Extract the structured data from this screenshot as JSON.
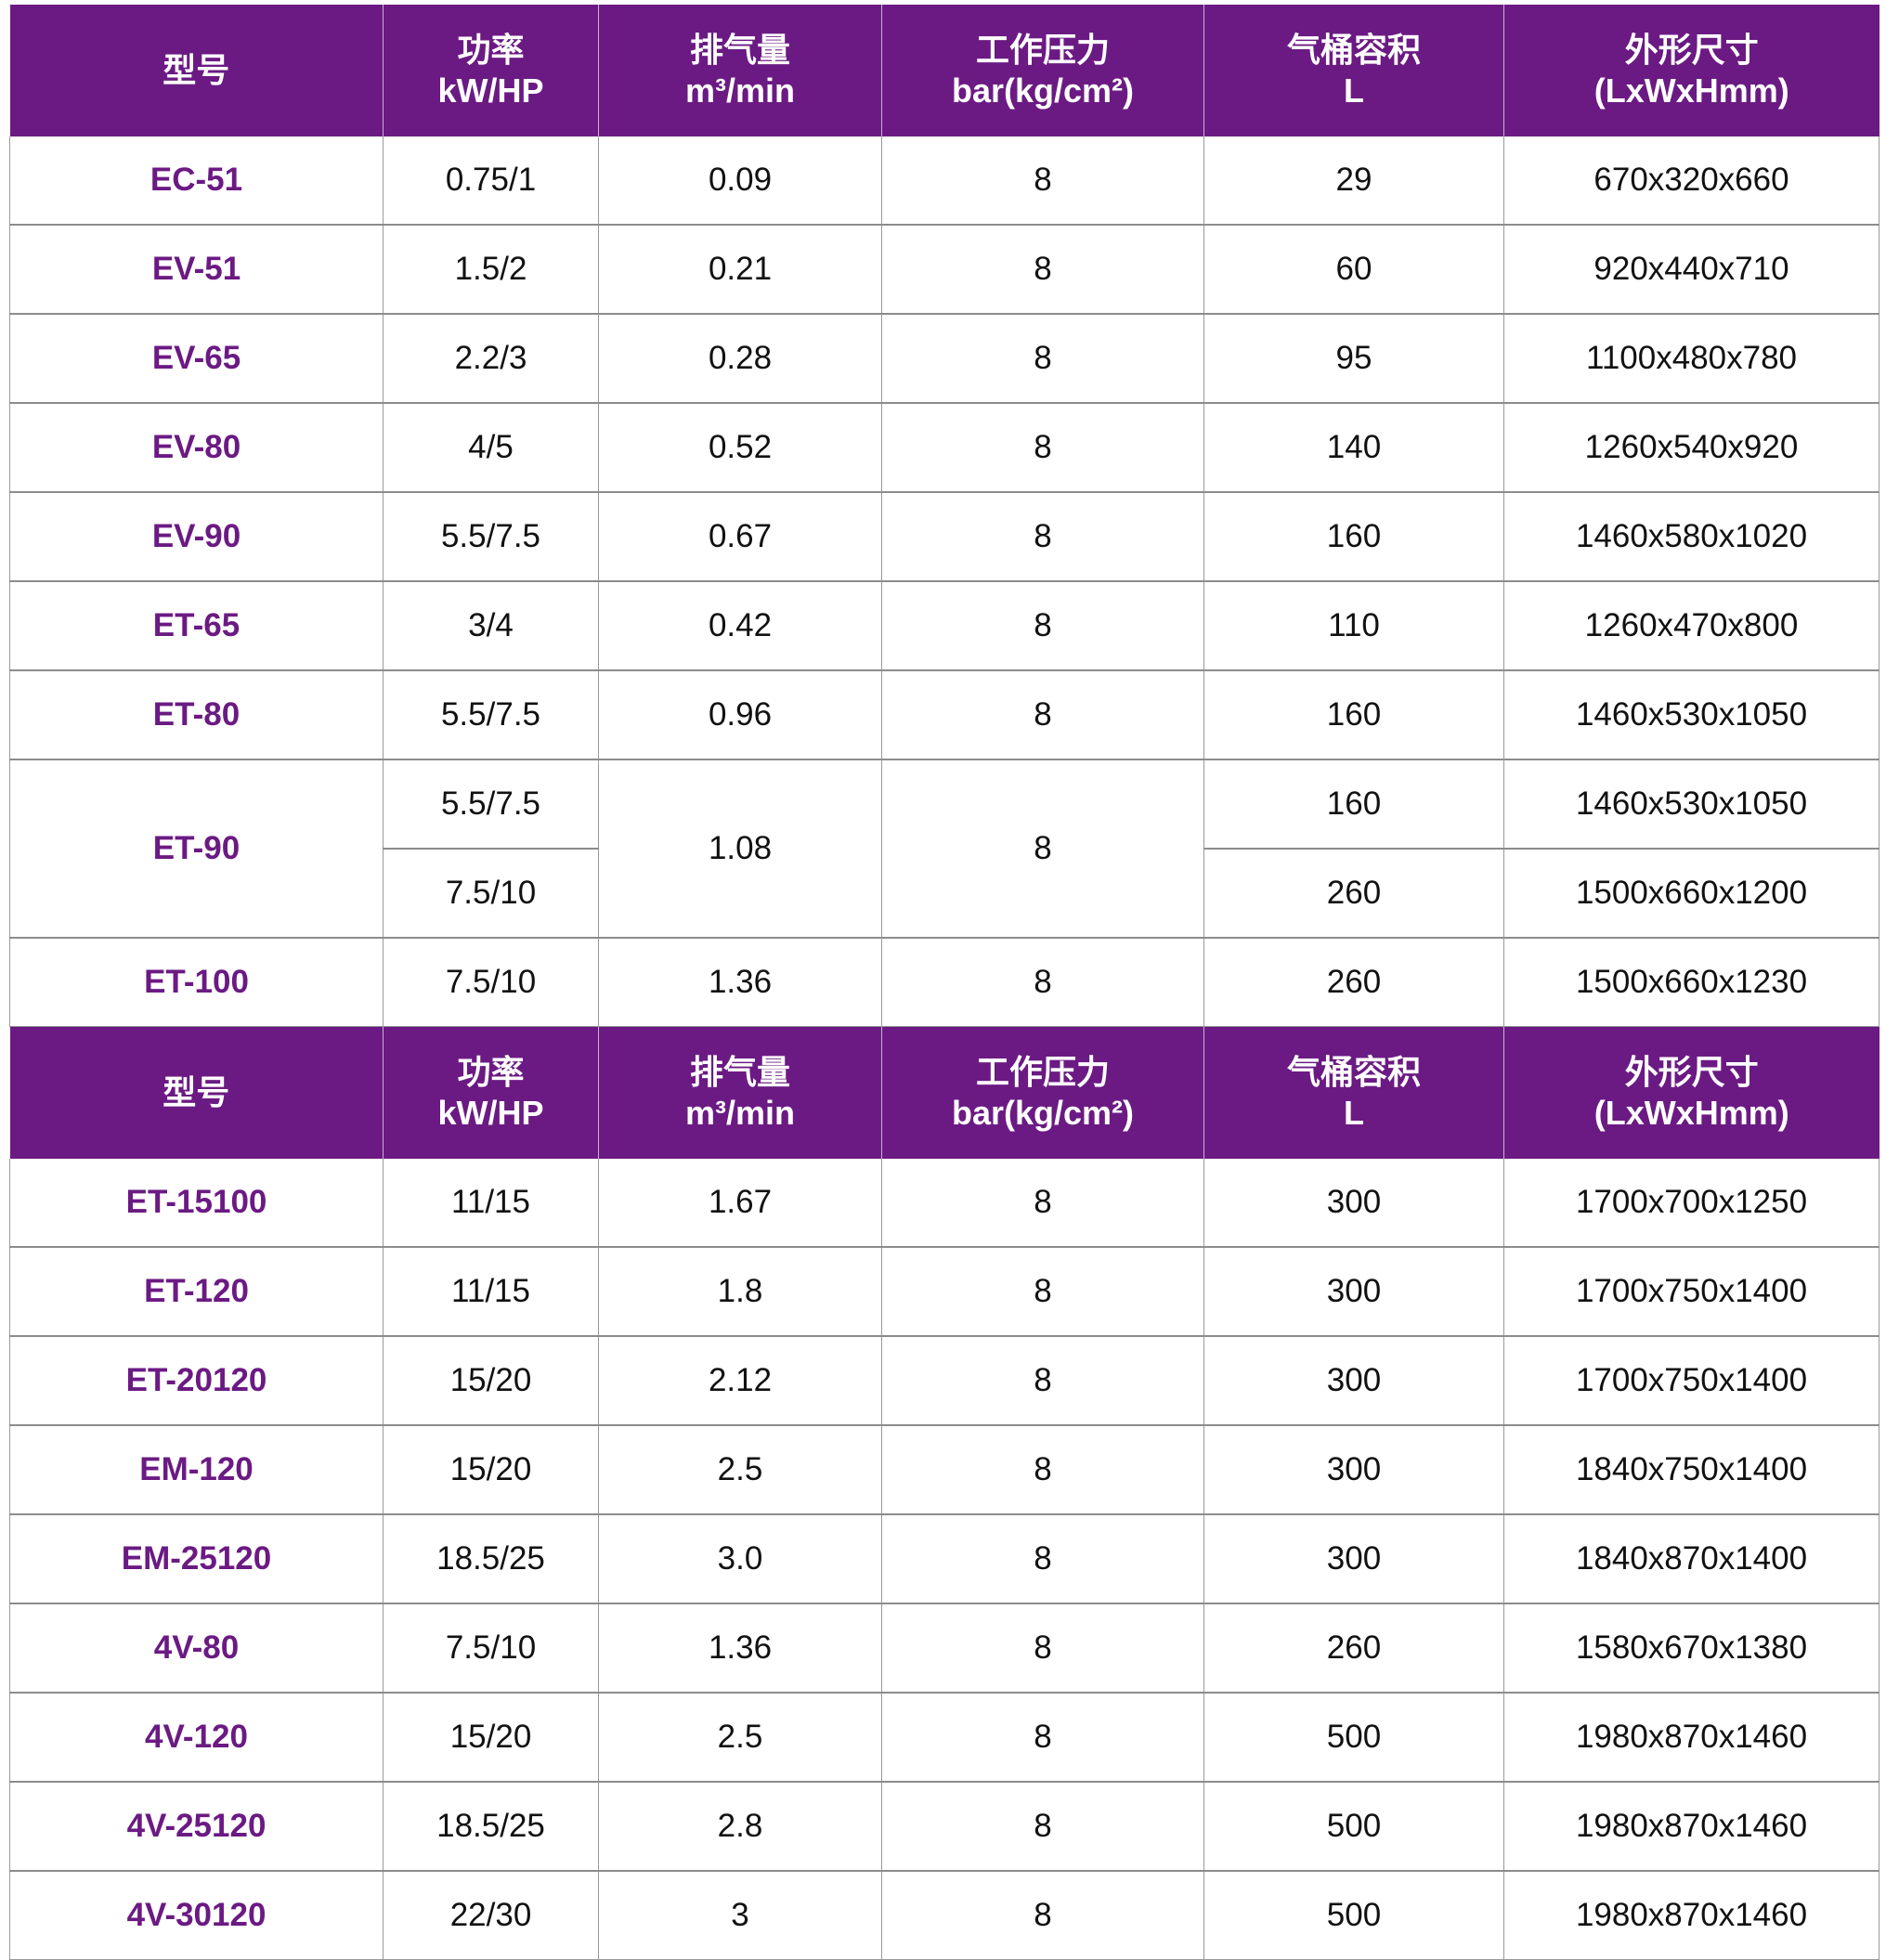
{
  "colors": {
    "header_bg": "#6b1a83",
    "model_text": "#6b1a83"
  },
  "headers": [
    [
      "型号"
    ],
    [
      "功率",
      "kW/HP"
    ],
    [
      "排气量",
      "m³/min"
    ],
    [
      "工作压力",
      "bar(kg/cm²)"
    ],
    [
      "气桶容积",
      "L"
    ],
    [
      "外形尺寸",
      "(LxWxHmm)"
    ]
  ],
  "sections": [
    {
      "rows": [
        {
          "model": "EC-51",
          "power": [
            "0.75/1"
          ],
          "flow": "0.09",
          "pressure": "8",
          "tank": [
            "29"
          ],
          "size": [
            "670x320x660"
          ]
        },
        {
          "model": "EV-51",
          "power": [
            "1.5/2"
          ],
          "flow": "0.21",
          "pressure": "8",
          "tank": [
            "60"
          ],
          "size": [
            "920x440x710"
          ]
        },
        {
          "model": "EV-65",
          "power": [
            "2.2/3"
          ],
          "flow": "0.28",
          "pressure": "8",
          "tank": [
            "95"
          ],
          "size": [
            "1100x480x780"
          ]
        },
        {
          "model": "EV-80",
          "power": [
            "4/5"
          ],
          "flow": "0.52",
          "pressure": "8",
          "tank": [
            "140"
          ],
          "size": [
            "1260x540x920"
          ]
        },
        {
          "model": "EV-90",
          "power": [
            "5.5/7.5"
          ],
          "flow": "0.67",
          "pressure": "8",
          "tank": [
            "160"
          ],
          "size": [
            "1460x580x1020"
          ]
        },
        {
          "model": "ET-65",
          "power": [
            "3/4"
          ],
          "flow": "0.42",
          "pressure": "8",
          "tank": [
            "110"
          ],
          "size": [
            "1260x470x800"
          ]
        },
        {
          "model": "ET-80",
          "power": [
            "5.5/7.5"
          ],
          "flow": "0.96",
          "pressure": "8",
          "tank": [
            "160"
          ],
          "size": [
            "1460x530x1050"
          ]
        },
        {
          "model": "ET-90",
          "power": [
            "5.5/7.5",
            "7.5/10"
          ],
          "flow": "1.08",
          "pressure": "8",
          "tank": [
            "160",
            "260"
          ],
          "size": [
            "1460x530x1050",
            "1500x660x1200"
          ]
        },
        {
          "model": "ET-100",
          "power": [
            "7.5/10"
          ],
          "flow": "1.36",
          "pressure": "8",
          "tank": [
            "260"
          ],
          "size": [
            "1500x660x1230"
          ]
        }
      ]
    },
    {
      "rows": [
        {
          "model": "ET-15100",
          "power": [
            "11/15"
          ],
          "flow": "1.67",
          "pressure": "8",
          "tank": [
            "300"
          ],
          "size": [
            "1700x700x1250"
          ]
        },
        {
          "model": "ET-120",
          "power": [
            "11/15"
          ],
          "flow": "1.8",
          "pressure": "8",
          "tank": [
            "300"
          ],
          "size": [
            "1700x750x1400"
          ]
        },
        {
          "model": "ET-20120",
          "power": [
            "15/20"
          ],
          "flow": "2.12",
          "pressure": "8",
          "tank": [
            "300"
          ],
          "size": [
            "1700x750x1400"
          ]
        },
        {
          "model": "EM-120",
          "power": [
            "15/20"
          ],
          "flow": "2.5",
          "pressure": "8",
          "tank": [
            "300"
          ],
          "size": [
            "1840x750x1400"
          ]
        },
        {
          "model": "EM-25120",
          "power": [
            "18.5/25"
          ],
          "flow": "3.0",
          "pressure": "8",
          "tank": [
            "300"
          ],
          "size": [
            "1840x870x1400"
          ]
        },
        {
          "model": "4V-80",
          "power": [
            "7.5/10"
          ],
          "flow": "1.36",
          "pressure": "8",
          "tank": [
            "260"
          ],
          "size": [
            "1580x670x1380"
          ]
        },
        {
          "model": "4V-120",
          "power": [
            "15/20"
          ],
          "flow": "2.5",
          "pressure": "8",
          "tank": [
            "500"
          ],
          "size": [
            "1980x870x1460"
          ]
        },
        {
          "model": "4V-25120",
          "power": [
            "18.5/25"
          ],
          "flow": "2.8",
          "pressure": "8",
          "tank": [
            "500"
          ],
          "size": [
            "1980x870x1460"
          ]
        },
        {
          "model": "4V-30120",
          "power": [
            "22/30"
          ],
          "flow": "3",
          "pressure": "8",
          "tank": [
            "500"
          ],
          "size": [
            "1980x870x1460"
          ]
        }
      ]
    }
  ]
}
